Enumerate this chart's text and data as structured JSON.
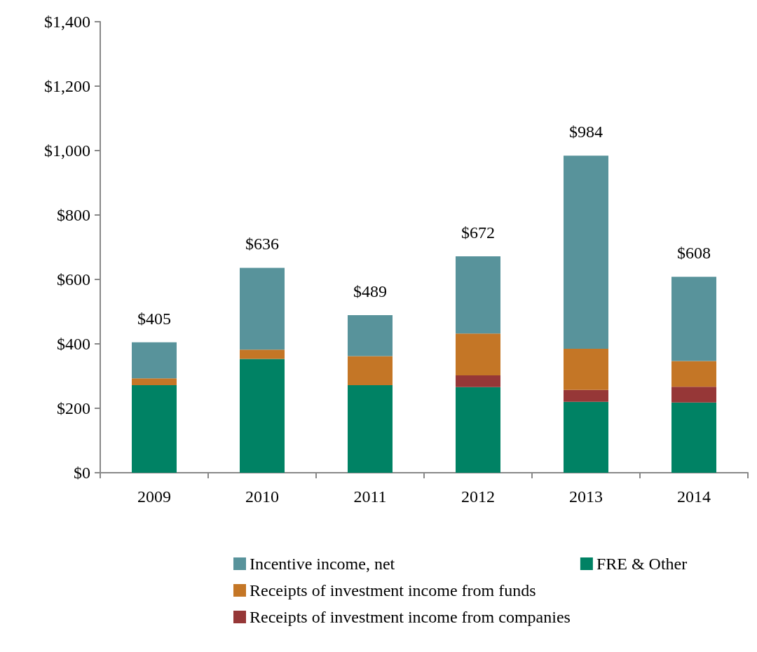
{
  "chart_data": {
    "type": "bar",
    "stacked": true,
    "categories": [
      "2009",
      "2010",
      "2011",
      "2012",
      "2013",
      "2014"
    ],
    "series": [
      {
        "name": "FRE & Other",
        "color": "#008264",
        "values": [
          272,
          353,
          272,
          266,
          220,
          218
        ]
      },
      {
        "name": "Receipts of investment income from companies",
        "color": "#963737",
        "values": [
          null,
          null,
          null,
          36,
          37,
          49
        ]
      },
      {
        "name": "Receipts of investment income from funds",
        "color": "#c47626",
        "values": [
          21,
          29,
          90,
          130,
          128,
          80
        ]
      },
      {
        "name": "Incentive income, net",
        "color": "#58939b",
        "values": [
          112,
          254,
          127,
          240,
          599,
          261
        ]
      }
    ],
    "totals": [
      "$405",
      "$636",
      "$489",
      "$672",
      "$984",
      "$608"
    ],
    "ylim": [
      0,
      1400
    ],
    "yticks": [
      {
        "value": 0,
        "label": "$0"
      },
      {
        "value": 200,
        "label": "$200"
      },
      {
        "value": 400,
        "label": "$400"
      },
      {
        "value": 600,
        "label": "$600"
      },
      {
        "value": 800,
        "label": "$800"
      },
      {
        "value": 1000,
        "label": "$1,000"
      },
      {
        "value": 1200,
        "label": "$1,200"
      },
      {
        "value": 1400,
        "label": "$1,400"
      }
    ],
    "grid": false,
    "legend": "bottom"
  }
}
